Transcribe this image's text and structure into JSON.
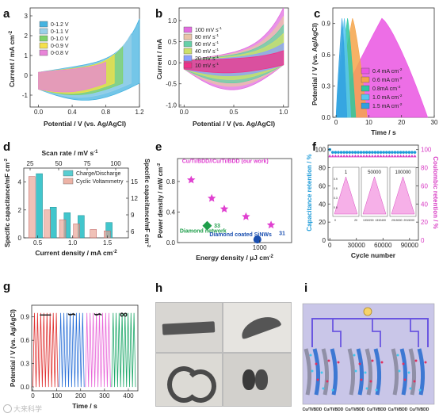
{
  "panels": {
    "a": {
      "letter": "a",
      "type": "line",
      "xlabel": "Potential / V (vs. Ag/AgCl)",
      "ylabel": "Current / mA cm",
      "ylabel_sup": "-2",
      "xlim": [
        -0.1,
        1.2
      ],
      "ylim": [
        -1.6,
        3.4
      ],
      "xticks": [
        "0.0",
        "0.4",
        "0.8",
        "1.2"
      ],
      "yticks": [
        "-1",
        "0",
        "1",
        "2",
        "3"
      ],
      "legend": [
        "0-1.2 V",
        "0-1.1 V",
        "0-1.0 V",
        "0-0.9 V",
        "0-0.8 V"
      ],
      "colors": [
        "#46b3e0",
        "#9ad0e8",
        "#7fd26a",
        "#f4e04a",
        "#e884d8"
      ]
    },
    "b": {
      "letter": "b",
      "type": "line",
      "xlabel": "Potential / V (vs. Ag/AgCl)",
      "ylabel": "Current / mA",
      "xlim": [
        -0.05,
        1.05
      ],
      "ylim": [
        -1.05,
        1.3
      ],
      "xticks": [
        "0.0",
        "0.5",
        "1.0"
      ],
      "yticks": [
        "-1.0",
        "-0.5",
        "0.0",
        "0.5",
        "1.0"
      ],
      "legend": [
        "100 mV s",
        "80 mV s",
        "60 mV s",
        "40 mV s",
        "20 mV s",
        "10 mV s"
      ],
      "legend_sup": "-1",
      "colors": [
        "#e26de0",
        "#e8c3a8",
        "#66d0a8",
        "#cde06a",
        "#8aa0ff",
        "#f0308a"
      ]
    },
    "c": {
      "letter": "c",
      "type": "line",
      "xlabel": "Time / s",
      "ylabel": "Potential / V (vs. Ag/AgCl)",
      "xlim": [
        -1,
        30
      ],
      "ylim": [
        0,
        1.05
      ],
      "xticks": [
        "0",
        "10",
        "20",
        "30"
      ],
      "yticks": [
        "0.0",
        "0.3",
        "0.6",
        "0.9"
      ],
      "legend": [
        "0.4 mA cm",
        "0.6 mA cm",
        "0.8mA cm",
        "1.0 mA cm",
        "1.5 mA cm"
      ],
      "legend_sup": "-2",
      "colors": [
        "#ea55e2",
        "#f5a44a",
        "#2ec7a0",
        "#58c6ef",
        "#30a0e0"
      ],
      "peaks": [
        [
          14,
          28
        ],
        [
          5,
          9.5
        ],
        [
          3.5,
          6
        ],
        [
          2.5,
          4.5
        ],
        [
          1.8,
          3.3
        ]
      ]
    },
    "d": {
      "letter": "d",
      "type": "bar",
      "xlabel": "Current density / mA cm",
      "xlabel_sup": "-2",
      "top_xlabel": "Scan rate / mV s",
      "top_xlabel_sup": "-1",
      "ylabel": "Specific capacitance/mF cm",
      "ylabel_sup": "-2",
      "ylabel_right": "Specific capacitance/mF cm",
      "ylabel_right_sup": "-2",
      "xlim": [
        0.3,
        1.8
      ],
      "ylim": [
        0,
        5
      ],
      "xticks": [
        "0.5",
        "1.0",
        "1.5"
      ],
      "yticks": [
        "0",
        "2",
        "4"
      ],
      "top_ticks": [
        "25",
        "50",
        "75",
        "100"
      ],
      "right_ticks": [
        "6",
        "9",
        "12",
        "15"
      ],
      "series": [
        {
          "name": "Charge/Discharge",
          "color": "#2ec0c6",
          "x": [
            0.5,
            0.7,
            0.9,
            1.1,
            1.5
          ],
          "values": [
            4.6,
            2.2,
            1.8,
            1.6,
            1.1
          ]
        },
        {
          "name": "Cyclic Voltammetry",
          "color": "#e8a090",
          "x": [
            0.44,
            0.66,
            0.88,
            1.08,
            1.32,
            1.52
          ],
          "values": [
            4.4,
            2.0,
            1.3,
            1.0,
            0.6,
            0.5
          ]
        }
      ]
    },
    "e": {
      "letter": "e",
      "type": "scatter",
      "xlabel": "Energy density / µJ cm",
      "xlabel_sup": "-2",
      "ylabel": "Power density / mW cm",
      "ylabel_sup": "-2",
      "ylim": [
        0,
        1.1
      ],
      "xticks": [
        "1000"
      ],
      "yticks": [
        "0.0",
        "0.4",
        "0.8"
      ],
      "points": [
        {
          "x": 0.12,
          "y": 0.82,
          "color": "#e040d0",
          "shape": "star"
        },
        {
          "x": 0.3,
          "y": 0.58,
          "color": "#e040d0",
          "shape": "star"
        },
        {
          "x": 0.41,
          "y": 0.44,
          "color": "#e040d0",
          "shape": "star"
        },
        {
          "x": 0.6,
          "y": 0.34,
          "color": "#e040d0",
          "shape": "star"
        },
        {
          "x": 0.82,
          "y": 0.23,
          "color": "#e040d0",
          "shape": "star"
        },
        {
          "x": 0.26,
          "y": 0.22,
          "color": "#1e9e4a",
          "shape": "diamond"
        },
        {
          "x": 0.7,
          "y": 0.04,
          "color": "#1a4fb0",
          "shape": "circle"
        }
      ],
      "annotations": [
        {
          "text": "Cu/Ti/BDD//Cu/Ti/BDD (our work)",
          "color": "#e040d0",
          "ax": 0.04,
          "ay": 0.95
        },
        {
          "text": "Diamond network",
          "color": "#1e9e4a",
          "ax": 0.02,
          "ay": 0.12
        },
        {
          "text": "33",
          "color": "#1e9e4a",
          "ax": 0.32,
          "ay": 0.18
        },
        {
          "text": "Diamond coated SiNWs",
          "color": "#1a4fb0",
          "ax": 0.28,
          "ay": 0.075
        },
        {
          "text": "31",
          "color": "#1a4fb0",
          "ax": 0.89,
          "ay": 0.09
        }
      ]
    },
    "f": {
      "letter": "f",
      "type": "line",
      "xlabel": "Cycle number",
      "ylabel": "Capacitance retention / %",
      "ylabel_right": "Coulombic retention / %",
      "xlim": [
        -2000,
        100000
      ],
      "ylim": [
        0,
        105
      ],
      "xticks": [
        "0",
        "30000",
        "60000",
        "90000"
      ],
      "yticks": [
        "0",
        "20",
        "40",
        "60",
        "80",
        "100"
      ],
      "right_ticks": [
        "0",
        "20",
        "40",
        "60",
        "80",
        "100"
      ],
      "series": [
        {
          "name": "Capacitance retention",
          "color": "#1b9ad8",
          "y": 97
        },
        {
          "name": "Coulombic retention",
          "color": "#d83cc4",
          "y": 93
        }
      ],
      "insets": [
        {
          "label": "1",
          "ticks": [
            "0",
            "20"
          ],
          "yticks": [
            "0.9",
            "0.6",
            "0.3",
            "0.0"
          ]
        },
        {
          "label": "50000",
          "ticks": [
            "1332200",
            "1332400"
          ]
        },
        {
          "label": "100000",
          "ticks": [
            "2915000",
            "2915200"
          ]
        }
      ]
    },
    "g": {
      "letter": "g",
      "type": "line",
      "xlabel": "Time / s",
      "ylabel": "Potential / V (vs. Ag/AgCl)",
      "xlim": [
        -5,
        440
      ],
      "ylim": [
        -0.05,
        1.05
      ],
      "xticks": [
        "0",
        "100",
        "200",
        "300",
        "400"
      ],
      "yticks": [
        "0.0",
        "0.3",
        "0.6",
        "0.9"
      ],
      "segments": [
        {
          "color": "#e03030",
          "start": 0,
          "end": 105,
          "icon": "—"
        },
        {
          "color": "#2a70d8",
          "start": 110,
          "end": 215,
          "icon": "∽"
        },
        {
          "color": "#e864d8",
          "start": 220,
          "end": 325,
          "icon": "∽"
        },
        {
          "color": "#1ea86a",
          "start": 330,
          "end": 430,
          "icon": "∞"
        }
      ],
      "cycles_per_segment": 8
    },
    "h": {
      "letter": "h"
    },
    "i": {
      "letter": "i",
      "device_labels": [
        "Cu/Ti/BDD",
        "Cu/Ti/BDD",
        "Cu/Ti/BDD",
        "Cu/Ti/BDD",
        "Cu/Ti/BDD",
        "Cu/Ti/BDD"
      ]
    }
  },
  "watermark": "大来科学"
}
